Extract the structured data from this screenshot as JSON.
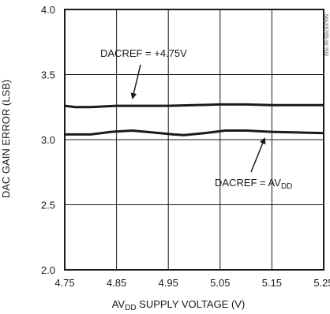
{
  "chart_data": {
    "type": "line",
    "title": "",
    "xlabel_pre": "AV",
    "xlabel_sub": "DD",
    "xlabel_post": " SUPPLY VOLTAGE (V)",
    "ylabel": "DAC GAIN ERROR (LSB)",
    "xlim": [
      4.75,
      5.25
    ],
    "ylim": [
      2.0,
      4.0
    ],
    "x_ticks": [
      "4.75",
      "4.85",
      "4.95",
      "5.05",
      "5.15",
      "5.25"
    ],
    "y_ticks": [
      "2.0",
      "2.5",
      "3.0",
      "3.5",
      "4.0"
    ],
    "grid": true,
    "series": [
      {
        "name": "DACREF = +4.75V",
        "x": [
          4.75,
          4.77,
          4.8,
          4.85,
          4.9,
          4.95,
          5.0,
          5.05,
          5.1,
          5.15,
          5.2,
          5.25
        ],
        "y": [
          3.26,
          3.25,
          3.25,
          3.26,
          3.26,
          3.26,
          3.265,
          3.27,
          3.27,
          3.265,
          3.265,
          3.265
        ]
      },
      {
        "name": "DACREF = AVDD",
        "x": [
          4.75,
          4.8,
          4.84,
          4.88,
          4.92,
          4.96,
          4.98,
          5.02,
          5.06,
          5.1,
          5.15,
          5.2,
          5.25
        ],
        "y": [
          3.04,
          3.04,
          3.06,
          3.07,
          3.055,
          3.04,
          3.035,
          3.05,
          3.07,
          3.07,
          3.06,
          3.055,
          3.05
        ]
      }
    ],
    "annotations": {
      "top": {
        "text": "DACREF = +4.75V"
      },
      "bottom": {
        "pre": "DACREF = AV",
        "sub": "DD"
      }
    },
    "watermark": "MAX9765-M-?03"
  }
}
